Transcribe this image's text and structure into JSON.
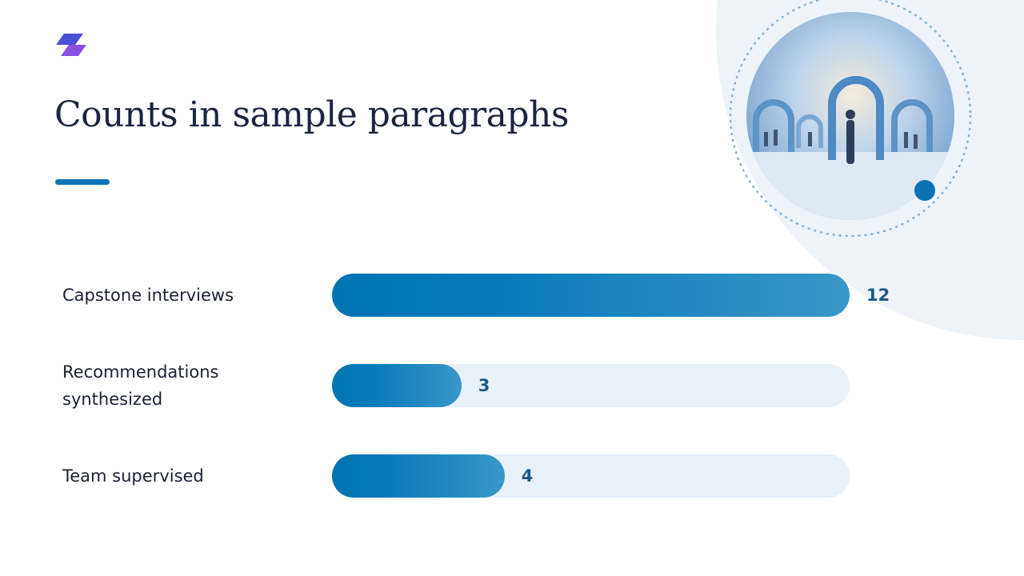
{
  "chart_data": {
    "type": "bar",
    "orientation": "horizontal",
    "title": "Counts in sample paragraphs",
    "categories": [
      "Capstone interviews",
      "Recommendations synthesized",
      "Team supervised"
    ],
    "values": [
      12,
      3,
      4
    ],
    "xlim": [
      0,
      12
    ],
    "color": "#0277b6"
  }
}
